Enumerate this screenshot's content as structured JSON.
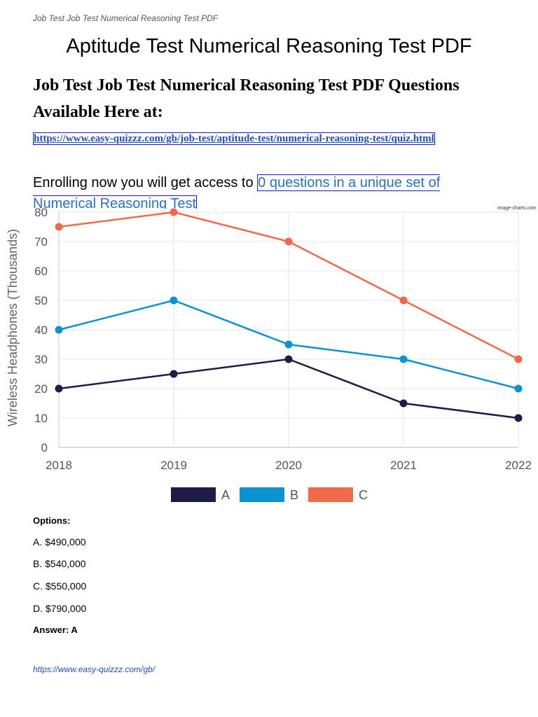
{
  "header": {
    "running_title": "Job Test Job Test Numerical Reasoning Test PDF"
  },
  "doc_title": "Aptitude Test Numerical Reasoning Test PDF",
  "heading": "Job Test Job Test Numerical Reasoning Test PDF Questions Available Here at:",
  "quiz_link": "https://www.easy-quizzz.com/gb/job-test/aptitude-test/numerical-reasoning-test/quiz.html",
  "enroll": {
    "prefix": "Enrolling now you will get access to ",
    "link_text": "0 questions in a unique set of Numerical Reasoning Test"
  },
  "chart_credit": "image-charts.com",
  "chart_data": {
    "type": "line",
    "title": "",
    "xlabel": "",
    "ylabel": "Wireless Headphones (Thousands)",
    "categories": [
      "2018",
      "2019",
      "2020",
      "2021",
      "2022"
    ],
    "ylim": [
      0,
      80
    ],
    "yticks": [
      "0",
      "10",
      "20",
      "30",
      "40",
      "50",
      "60",
      "70",
      "80"
    ],
    "grid": true,
    "legend": "bottom",
    "series": [
      {
        "name": "A",
        "color": "#1c1c45",
        "values": [
          20,
          25,
          30,
          15,
          10
        ]
      },
      {
        "name": "B",
        "color": "#0a93d0",
        "values": [
          40,
          50,
          35,
          30,
          20
        ]
      },
      {
        "name": "C",
        "color": "#f06a4a",
        "values": [
          75,
          80,
          70,
          50,
          30
        ]
      }
    ]
  },
  "options": {
    "label": "Options:",
    "items": [
      "A. $490,000",
      "B. $540,000",
      "C. $550,000",
      "D. $790,000"
    ]
  },
  "answer": "Answer: A",
  "footer_link": "https://www.easy-quizzz.com/gb/"
}
